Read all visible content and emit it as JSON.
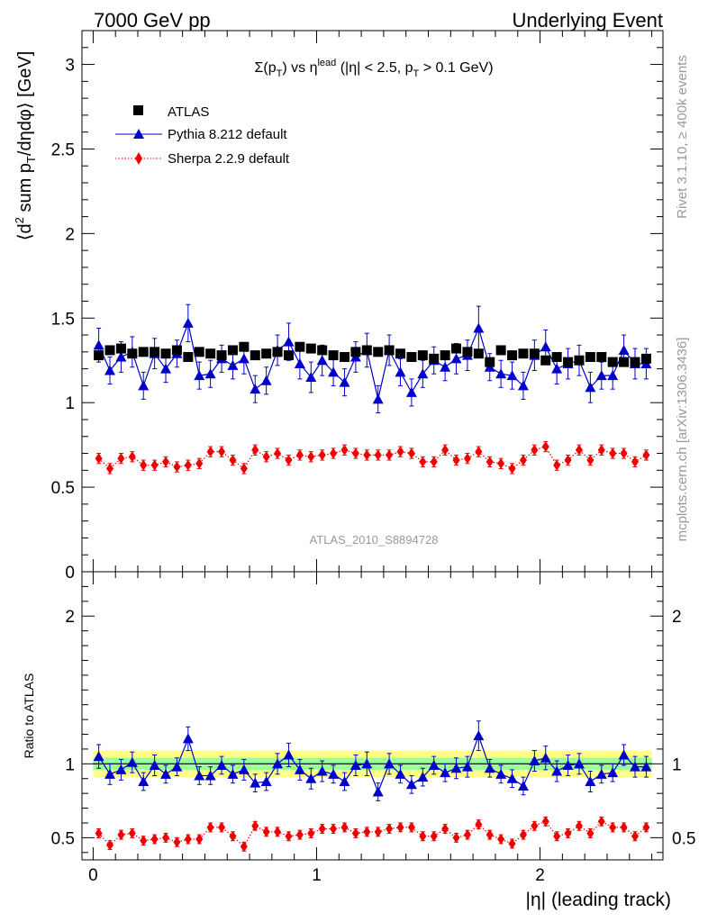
{
  "header": {
    "energy": "7000 GeV pp",
    "process": "Underlying Event",
    "title_main": "Σ(p",
    "title_sub1": "T",
    "title_mid": ") vs η",
    "title_sup": "lead",
    "title_cut": " (|η| < 2.5, p",
    "title_sub2": "T",
    "title_end": " > 0.1 GeV)",
    "analysis_id": "ATLAS_2010_S8894728",
    "side_rivet": "Rivet 3.1.10, ≥ 400k events",
    "side_mcplots": "mcplots.cern.ch [arXiv:1306.3436]"
  },
  "axes": {
    "ylabel_main_pre": "⟨d",
    "ylabel_main_sup": "2",
    "ylabel_main_mid": " sum p",
    "ylabel_main_sub": "T",
    "ylabel_main_post": "/dηdφ⟩ [GeV]",
    "ylabel_ratio": "Ratio to ATLAS",
    "xlabel": "|η| (leading track)",
    "main_ylim": [
      0,
      3.2
    ],
    "ratio_ylim": [
      0.35,
      2.3
    ],
    "xlim": [
      -0.05,
      2.55
    ],
    "main_yticks": [
      0,
      0.5,
      1,
      1.5,
      2,
      2.5,
      3
    ],
    "main_ytick_labels": [
      "0",
      "0.5",
      "1",
      "1.5",
      "2",
      "2.5",
      "3"
    ],
    "ratio_yticks": [
      0.5,
      1,
      2
    ],
    "ratio_ytick_labels": [
      "0.5",
      "1",
      "2"
    ],
    "xticks": [
      0,
      1,
      2
    ],
    "xtick_labels": [
      "0",
      "1",
      "2"
    ]
  },
  "legend": {
    "atlas": "ATLAS",
    "pythia": "Pythia 8.212 default",
    "sherpa": "Sherpa 2.2.9 default",
    "placement": "top-left"
  },
  "colors": {
    "atlas": "#000000",
    "pythia": "#0000cc",
    "sherpa": "#ee0000",
    "band_inner": "#99ff99",
    "band_outer": "#ffff88",
    "grey_text": "#999999"
  },
  "chart_data": {
    "type": "scatter",
    "x": [
      0.025,
      0.075,
      0.125,
      0.175,
      0.225,
      0.275,
      0.325,
      0.375,
      0.425,
      0.475,
      0.525,
      0.575,
      0.625,
      0.675,
      0.725,
      0.775,
      0.825,
      0.875,
      0.925,
      0.975,
      1.025,
      1.075,
      1.125,
      1.175,
      1.225,
      1.275,
      1.325,
      1.375,
      1.425,
      1.475,
      1.525,
      1.575,
      1.625,
      1.675,
      1.725,
      1.775,
      1.825,
      1.875,
      1.925,
      1.975,
      2.025,
      2.075,
      2.125,
      2.175,
      2.225,
      2.275,
      2.325,
      2.375,
      2.425,
      2.475
    ],
    "series": [
      {
        "name": "ATLAS",
        "values": [
          1.28,
          1.31,
          1.32,
          1.29,
          1.3,
          1.3,
          1.29,
          1.31,
          1.27,
          1.3,
          1.29,
          1.28,
          1.31,
          1.33,
          1.28,
          1.29,
          1.3,
          1.28,
          1.33,
          1.32,
          1.31,
          1.28,
          1.27,
          1.3,
          1.31,
          1.3,
          1.31,
          1.29,
          1.27,
          1.28,
          1.26,
          1.28,
          1.32,
          1.3,
          1.29,
          1.24,
          1.31,
          1.28,
          1.29,
          1.29,
          1.25,
          1.27,
          1.24,
          1.25,
          1.27,
          1.27,
          1.24,
          1.24,
          1.24,
          1.26
        ],
        "err": [
          0.02,
          0.02,
          0.02,
          0.02,
          0.02,
          0.02,
          0.02,
          0.02,
          0.02,
          0.02,
          0.02,
          0.02,
          0.02,
          0.02,
          0.02,
          0.02,
          0.02,
          0.02,
          0.02,
          0.02,
          0.02,
          0.02,
          0.02,
          0.02,
          0.02,
          0.02,
          0.02,
          0.02,
          0.02,
          0.02,
          0.02,
          0.02,
          0.02,
          0.02,
          0.02,
          0.02,
          0.02,
          0.02,
          0.02,
          0.02,
          0.02,
          0.02,
          0.02,
          0.02,
          0.02,
          0.02,
          0.02,
          0.02,
          0.02,
          0.02
        ]
      },
      {
        "name": "Pythia 8.212 default",
        "values": [
          1.34,
          1.19,
          1.27,
          1.3,
          1.1,
          1.29,
          1.2,
          1.29,
          1.47,
          1.16,
          1.17,
          1.26,
          1.22,
          1.26,
          1.08,
          1.13,
          1.31,
          1.36,
          1.23,
          1.15,
          1.25,
          1.18,
          1.12,
          1.27,
          1.31,
          1.02,
          1.31,
          1.18,
          1.06,
          1.17,
          1.25,
          1.21,
          1.26,
          1.28,
          1.44,
          1.21,
          1.17,
          1.16,
          1.1,
          1.28,
          1.33,
          1.2,
          1.23,
          1.25,
          1.09,
          1.16,
          1.16,
          1.31,
          1.23,
          1.23
        ],
        "err": [
          0.1,
          0.08,
          0.09,
          0.09,
          0.08,
          0.09,
          0.08,
          0.08,
          0.11,
          0.08,
          0.08,
          0.08,
          0.08,
          0.09,
          0.08,
          0.08,
          0.09,
          0.11,
          0.09,
          0.09,
          0.09,
          0.08,
          0.08,
          0.09,
          0.1,
          0.08,
          0.09,
          0.08,
          0.08,
          0.08,
          0.08,
          0.08,
          0.09,
          0.09,
          0.13,
          0.08,
          0.08,
          0.08,
          0.08,
          0.09,
          0.1,
          0.09,
          0.09,
          0.09,
          0.09,
          0.08,
          0.08,
          0.09,
          0.09,
          0.09
        ]
      },
      {
        "name": "Sherpa 2.2.9 default",
        "values": [
          0.67,
          0.61,
          0.67,
          0.68,
          0.63,
          0.63,
          0.65,
          0.62,
          0.63,
          0.64,
          0.71,
          0.71,
          0.66,
          0.61,
          0.72,
          0.68,
          0.7,
          0.66,
          0.69,
          0.68,
          0.69,
          0.7,
          0.72,
          0.7,
          0.69,
          0.69,
          0.69,
          0.71,
          0.7,
          0.65,
          0.65,
          0.72,
          0.66,
          0.67,
          0.71,
          0.65,
          0.64,
          0.61,
          0.66,
          0.72,
          0.74,
          0.63,
          0.66,
          0.72,
          0.66,
          0.72,
          0.7,
          0.7,
          0.65,
          0.69
        ],
        "err": [
          0.03,
          0.03,
          0.03,
          0.03,
          0.03,
          0.03,
          0.03,
          0.03,
          0.03,
          0.03,
          0.03,
          0.03,
          0.03,
          0.03,
          0.03,
          0.03,
          0.03,
          0.03,
          0.03,
          0.03,
          0.03,
          0.03,
          0.03,
          0.03,
          0.03,
          0.03,
          0.03,
          0.03,
          0.03,
          0.03,
          0.03,
          0.03,
          0.03,
          0.03,
          0.03,
          0.03,
          0.03,
          0.03,
          0.03,
          0.03,
          0.03,
          0.03,
          0.03,
          0.03,
          0.03,
          0.03,
          0.03,
          0.03,
          0.03,
          0.03
        ]
      }
    ],
    "ratio": [
      {
        "name": "Pythia 8.212 default",
        "values": [
          1.05,
          0.93,
          0.96,
          1.01,
          0.88,
          0.99,
          0.93,
          0.98,
          1.17,
          0.92,
          0.92,
          0.99,
          0.93,
          0.96,
          0.87,
          0.88,
          1.0,
          1.06,
          0.96,
          0.9,
          0.95,
          0.93,
          0.88,
          0.99,
          1.0,
          0.81,
          1.0,
          0.93,
          0.86,
          0.91,
          0.99,
          0.94,
          0.97,
          0.98,
          1.19,
          0.97,
          0.93,
          0.9,
          0.85,
          1.02,
          1.04,
          0.95,
          0.99,
          1.0,
          0.88,
          0.93,
          0.94,
          1.06,
          0.98,
          0.98
        ],
        "err": [
          0.08,
          0.07,
          0.07,
          0.07,
          0.06,
          0.07,
          0.06,
          0.06,
          0.08,
          0.06,
          0.06,
          0.06,
          0.06,
          0.07,
          0.06,
          0.06,
          0.07,
          0.08,
          0.07,
          0.07,
          0.07,
          0.06,
          0.06,
          0.07,
          0.08,
          0.06,
          0.07,
          0.06,
          0.06,
          0.06,
          0.06,
          0.06,
          0.07,
          0.07,
          0.1,
          0.06,
          0.06,
          0.06,
          0.06,
          0.07,
          0.08,
          0.07,
          0.07,
          0.07,
          0.07,
          0.06,
          0.06,
          0.07,
          0.07,
          0.07
        ]
      },
      {
        "name": "Sherpa 2.2.9 default",
        "values": [
          0.53,
          0.45,
          0.52,
          0.53,
          0.48,
          0.49,
          0.5,
          0.47,
          0.49,
          0.49,
          0.57,
          0.57,
          0.51,
          0.44,
          0.58,
          0.54,
          0.54,
          0.51,
          0.52,
          0.53,
          0.56,
          0.56,
          0.57,
          0.53,
          0.54,
          0.54,
          0.56,
          0.57,
          0.57,
          0.51,
          0.51,
          0.56,
          0.5,
          0.52,
          0.59,
          0.52,
          0.49,
          0.46,
          0.52,
          0.58,
          0.61,
          0.51,
          0.53,
          0.58,
          0.53,
          0.61,
          0.57,
          0.57,
          0.51,
          0.57
        ],
        "err": [
          0.03,
          0.03,
          0.03,
          0.03,
          0.03,
          0.03,
          0.03,
          0.03,
          0.03,
          0.03,
          0.03,
          0.03,
          0.03,
          0.03,
          0.03,
          0.03,
          0.03,
          0.03,
          0.03,
          0.03,
          0.03,
          0.03,
          0.03,
          0.03,
          0.03,
          0.03,
          0.03,
          0.03,
          0.03,
          0.03,
          0.03,
          0.03,
          0.03,
          0.03,
          0.03,
          0.03,
          0.03,
          0.03,
          0.03,
          0.03,
          0.03,
          0.03,
          0.03,
          0.03,
          0.03,
          0.03,
          0.03,
          0.03,
          0.03,
          0.03
        ]
      }
    ],
    "ratio_band": {
      "inner": 0.04,
      "outer": 0.09
    }
  }
}
